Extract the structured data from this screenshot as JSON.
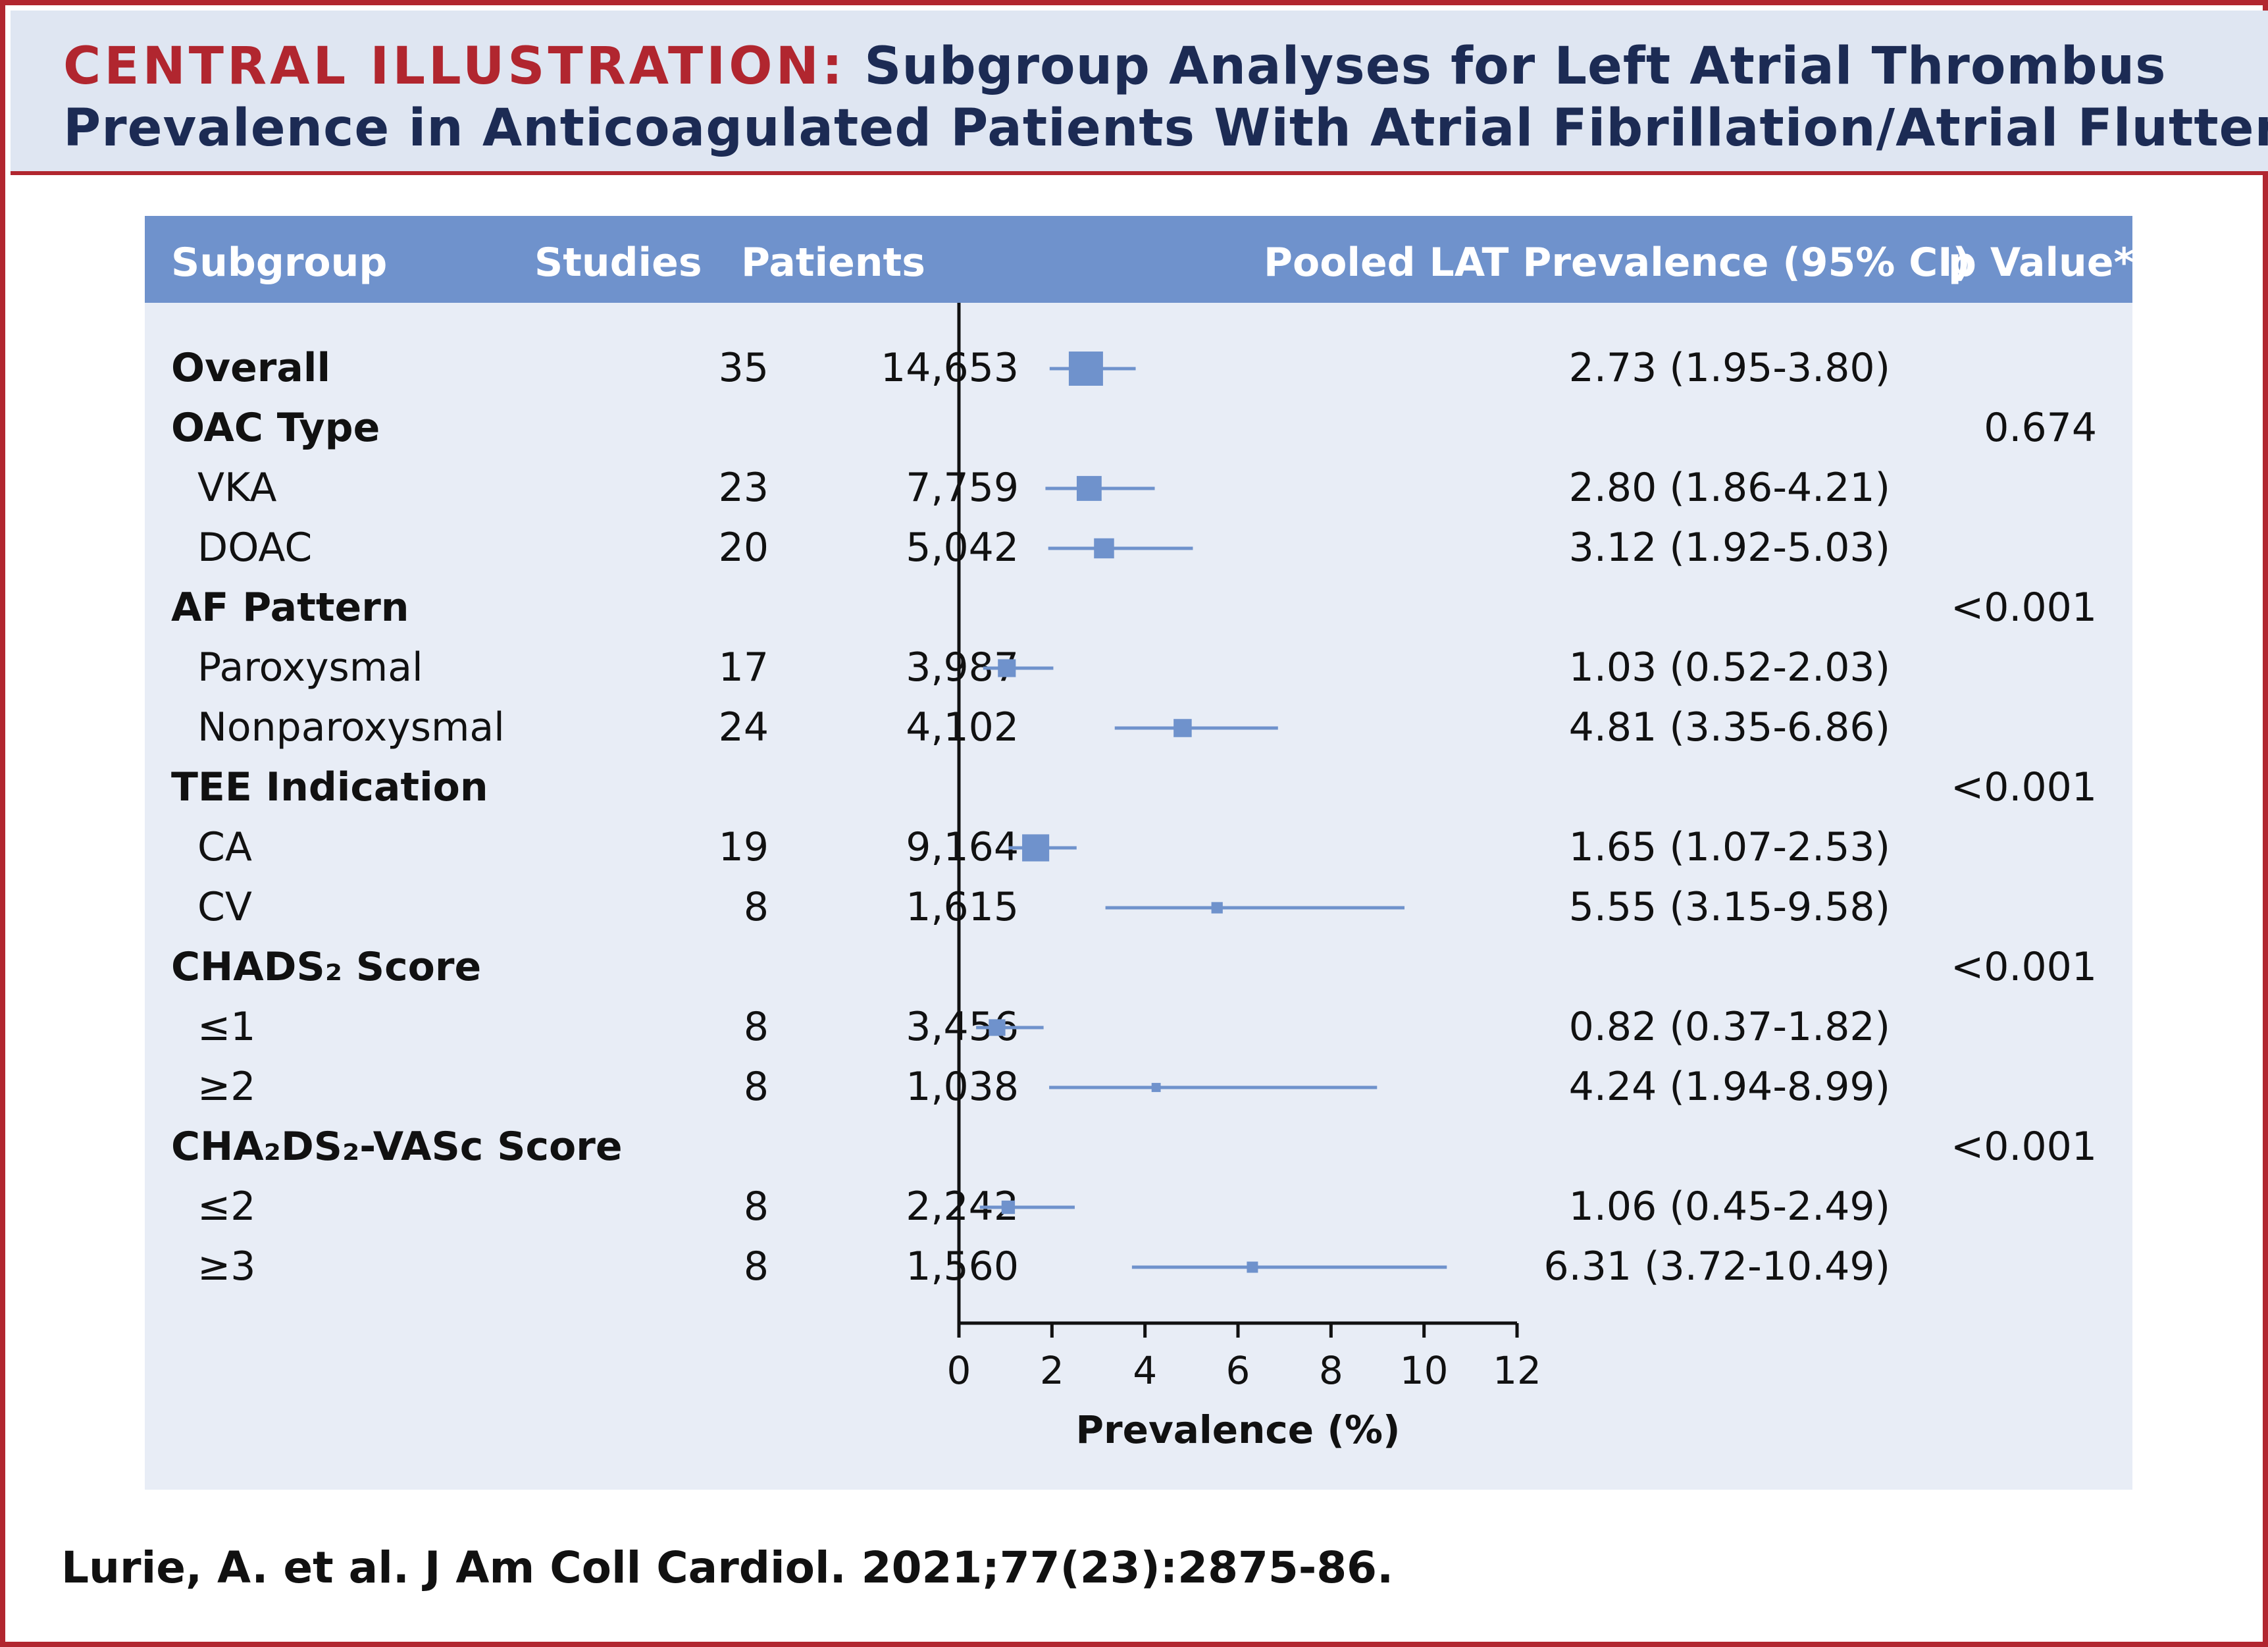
{
  "title": {
    "label": "CENTRAL ILLUSTRATION:",
    "line1": "Subgroup Analyses for Left Atrial Thrombus",
    "line2": "Prevalence in Anticoagulated Patients With Atrial Fibrillation/Atrial Flutter"
  },
  "table": {
    "headers": {
      "subgroup": "Subgroup",
      "studies": "Studies",
      "patients": "Patients",
      "prevalence": "Pooled LAT Prevalence (95% CI)",
      "pvalue": "p Value*"
    }
  },
  "chart_data": {
    "type": "forest",
    "xlabel": "Prevalence (%)",
    "xlim": [
      0,
      12
    ],
    "xticks": [
      "0",
      "2",
      "4",
      "6",
      "8",
      "10",
      "12"
    ],
    "rows": [
      {
        "label": "Overall",
        "bold": true,
        "indent": false,
        "studies": "35",
        "patients": "14,653",
        "estimate": 2.73,
        "lower": 1.95,
        "upper": 3.8,
        "text": "2.73 (1.95-3.80)",
        "pvalue": ""
      },
      {
        "label": "OAC Type",
        "bold": true,
        "indent": false,
        "studies": "",
        "patients": "",
        "estimate": null,
        "lower": null,
        "upper": null,
        "text": "",
        "pvalue": "0.674"
      },
      {
        "label": "VKA",
        "bold": false,
        "indent": true,
        "studies": "23",
        "patients": "7,759",
        "estimate": 2.8,
        "lower": 1.86,
        "upper": 4.21,
        "text": "2.80 (1.86-4.21)",
        "pvalue": ""
      },
      {
        "label": "DOAC",
        "bold": false,
        "indent": true,
        "studies": "20",
        "patients": "5,042",
        "estimate": 3.12,
        "lower": 1.92,
        "upper": 5.03,
        "text": "3.12 (1.92-5.03)",
        "pvalue": ""
      },
      {
        "label": "AF Pattern",
        "bold": true,
        "indent": false,
        "studies": "",
        "patients": "",
        "estimate": null,
        "lower": null,
        "upper": null,
        "text": "",
        "pvalue": "<0.001"
      },
      {
        "label": "Paroxysmal",
        "bold": false,
        "indent": true,
        "studies": "17",
        "patients": "3,987",
        "estimate": 1.03,
        "lower": 0.52,
        "upper": 2.03,
        "text": "1.03 (0.52-2.03)",
        "pvalue": ""
      },
      {
        "label": "Nonparoxysmal",
        "bold": false,
        "indent": true,
        "studies": "24",
        "patients": "4,102",
        "estimate": 4.81,
        "lower": 3.35,
        "upper": 6.86,
        "text": "4.81 (3.35-6.86)",
        "pvalue": ""
      },
      {
        "label": "TEE Indication",
        "bold": true,
        "indent": false,
        "studies": "",
        "patients": "",
        "estimate": null,
        "lower": null,
        "upper": null,
        "text": "",
        "pvalue": "<0.001"
      },
      {
        "label": "CA",
        "bold": false,
        "indent": true,
        "studies": "19",
        "patients": "9,164",
        "estimate": 1.65,
        "lower": 1.07,
        "upper": 2.53,
        "text": "1.65 (1.07-2.53)",
        "pvalue": ""
      },
      {
        "label": "CV",
        "bold": false,
        "indent": true,
        "studies": "8",
        "patients": "1,615",
        "estimate": 5.55,
        "lower": 3.15,
        "upper": 9.58,
        "text": "5.55 (3.15-9.58)",
        "pvalue": ""
      },
      {
        "label": "CHADS₂ Score",
        "bold": true,
        "indent": false,
        "studies": "",
        "patients": "",
        "estimate": null,
        "lower": null,
        "upper": null,
        "text": "",
        "pvalue": "<0.001"
      },
      {
        "label": "≤1",
        "bold": false,
        "indent": true,
        "studies": "8",
        "patients": "3,456",
        "estimate": 0.82,
        "lower": 0.37,
        "upper": 1.82,
        "text": "0.82 (0.37-1.82)",
        "pvalue": ""
      },
      {
        "label": "≥2",
        "bold": false,
        "indent": true,
        "studies": "8",
        "patients": "1,038",
        "estimate": 4.24,
        "lower": 1.94,
        "upper": 8.99,
        "text": "4.24 (1.94-8.99)",
        "pvalue": ""
      },
      {
        "label": "CHA₂DS₂-VASc Score",
        "bold": true,
        "indent": false,
        "studies": "",
        "patients": "",
        "estimate": null,
        "lower": null,
        "upper": null,
        "text": "",
        "pvalue": "<0.001"
      },
      {
        "label": "≤2",
        "bold": false,
        "indent": true,
        "studies": "8",
        "patients": "2,242",
        "estimate": 1.06,
        "lower": 0.45,
        "upper": 2.49,
        "text": "1.06 (0.45-2.49)",
        "pvalue": ""
      },
      {
        "label": "≥3",
        "bold": false,
        "indent": true,
        "studies": "8",
        "patients": "1,560",
        "estimate": 6.31,
        "lower": 3.72,
        "upper": 10.49,
        "text": "6.31 (3.72-10.49)",
        "pvalue": ""
      }
    ],
    "colors": {
      "marker": "#6f92cc",
      "axis": "#111111"
    }
  },
  "citation": "Lurie, A. et al. J Am Coll Cardiol. 2021;77(23):2875-86."
}
